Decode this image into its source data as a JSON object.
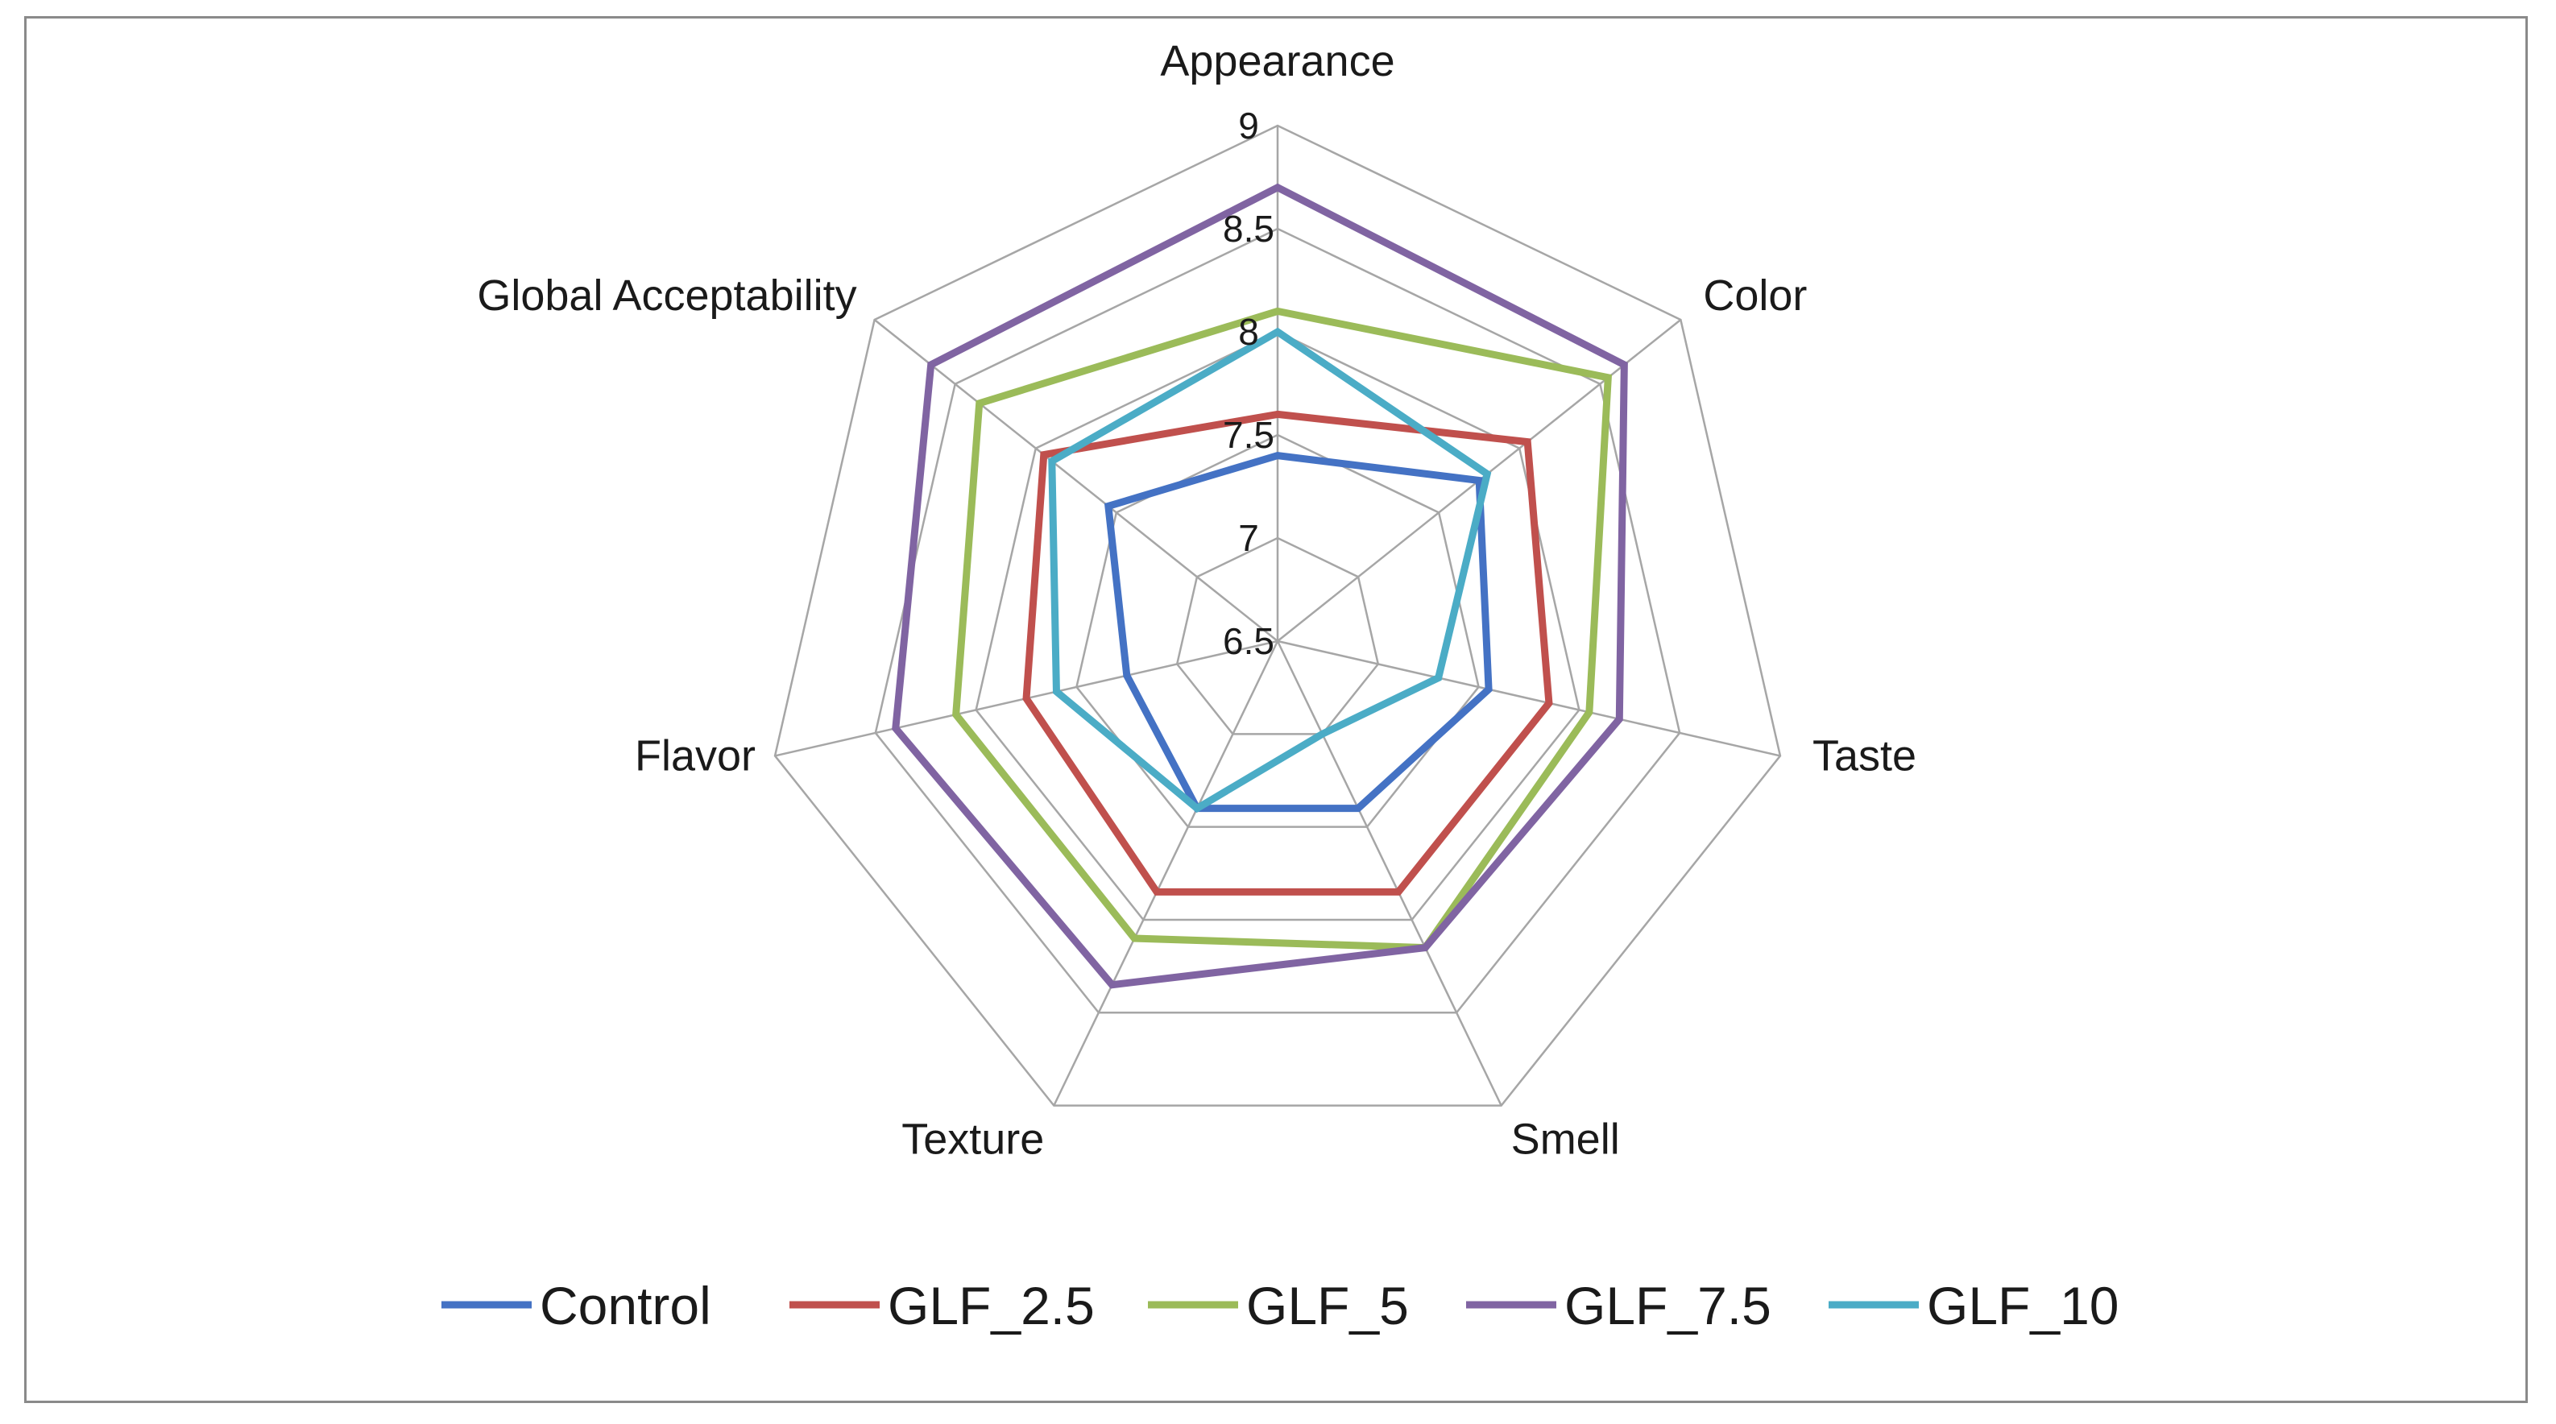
{
  "chart_data": {
    "type": "radar",
    "title": "",
    "categories": [
      "Appearance",
      "Color",
      "Taste",
      "Smell",
      "Texture",
      "Flavor",
      "Global Acceptability"
    ],
    "rlim": [
      6.5,
      9
    ],
    "ticks": [
      6.5,
      7,
      7.5,
      8,
      8.5,
      9
    ],
    "tick_labels": [
      "6.5",
      "7",
      "7.5",
      "8",
      "8.5",
      "9"
    ],
    "grid": true,
    "legend_position": "bottom",
    "series": [
      {
        "name": "Control",
        "color": "#4472C4",
        "values": [
          7.4,
          7.75,
          7.55,
          7.4,
          7.4,
          7.25,
          7.55
        ]
      },
      {
        "name": "GLF_2.5",
        "color": "#C0504D",
        "values": [
          7.6,
          8.05,
          7.85,
          7.85,
          7.85,
          7.75,
          7.95
        ]
      },
      {
        "name": "GLF_5",
        "color": "#9BBB59",
        "values": [
          8.1,
          8.55,
          8.05,
          8.15,
          8.1,
          8.1,
          8.35
        ]
      },
      {
        "name": "GLF_7.5",
        "color": "#8064A2",
        "values": [
          8.7,
          8.65,
          8.2,
          8.15,
          8.35,
          8.4,
          8.65
        ]
      },
      {
        "name": "GLF_10",
        "color": "#4BACC6",
        "values": [
          8.0,
          7.8,
          7.3,
          7.0,
          7.4,
          7.6,
          7.9
        ]
      }
    ]
  }
}
